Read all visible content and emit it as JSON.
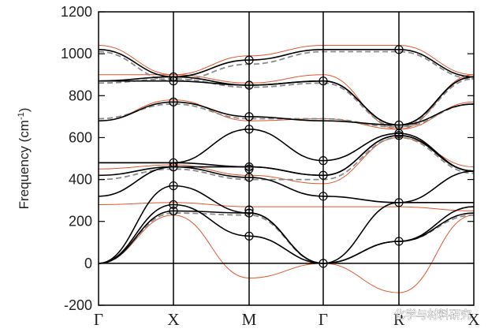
{
  "chart_data": {
    "type": "line",
    "ylabel": "Frequency (cm",
    "ylabel_sup": "-1",
    "ylabel_close": ")",
    "ylim": [
      -200,
      1200
    ],
    "yticks": [
      -200,
      0,
      200,
      400,
      600,
      800,
      1000,
      1200
    ],
    "high_symmetry_labels": [
      "Γ",
      "X",
      "M",
      "Γ",
      "R",
      "X"
    ],
    "grid": false,
    "series_colors": {
      "black": "#000000",
      "gray_dashed": "#8a8a8a",
      "red": "#e2572f"
    },
    "branches": [
      {
        "color": "black",
        "y": [
          0,
          250,
          240,
          0,
          105,
          240
        ]
      },
      {
        "color": "black",
        "y": [
          0,
          280,
          130,
          0,
          105,
          270
        ]
      },
      {
        "color": "black",
        "y": [
          0,
          370,
          240,
          0,
          290,
          290
        ]
      },
      {
        "color": "black",
        "y": [
          320,
          460,
          410,
          320,
          290,
          440
        ]
      },
      {
        "color": "black",
        "y": [
          420,
          460,
          460,
          420,
          610,
          440
        ]
      },
      {
        "color": "black",
        "y": [
          480,
          480,
          460,
          420,
          610,
          440
        ]
      },
      {
        "color": "black",
        "y": [
          480,
          480,
          640,
          490,
          620,
          440
        ]
      },
      {
        "color": "black",
        "y": [
          680,
          770,
          700,
          680,
          660,
          760
        ]
      },
      {
        "color": "black",
        "y": [
          870,
          870,
          850,
          870,
          660,
          890
        ]
      },
      {
        "color": "black",
        "y": [
          870,
          890,
          850,
          870,
          660,
          890
        ]
      },
      {
        "color": "black",
        "y": [
          1020,
          890,
          970,
          1020,
          1020,
          890
        ]
      },
      {
        "color": "gray_dashed",
        "y": [
          0,
          240,
          230,
          0,
          105,
          230
        ]
      },
      {
        "color": "gray_dashed",
        "y": [
          400,
          450,
          400,
          400,
          600,
          430
        ]
      },
      {
        "color": "gray_dashed",
        "y": [
          690,
          760,
          690,
          690,
          650,
          760
        ]
      },
      {
        "color": "gray_dashed",
        "y": [
          860,
          880,
          840,
          860,
          650,
          880
        ]
      },
      {
        "color": "gray_dashed",
        "y": [
          1010,
          870,
          950,
          1010,
          1010,
          880
        ]
      },
      {
        "color": "red",
        "y": [
          0,
          230,
          -70,
          0,
          -140,
          230
        ]
      },
      {
        "color": "red",
        "y": [
          280,
          290,
          270,
          270,
          270,
          250
        ]
      },
      {
        "color": "red",
        "y": [
          450,
          470,
          420,
          380,
          600,
          460
        ]
      },
      {
        "color": "red",
        "y": [
          680,
          780,
          680,
          690,
          640,
          770
        ]
      },
      {
        "color": "red",
        "y": [
          900,
          900,
          860,
          900,
          640,
          900
        ]
      },
      {
        "color": "red",
        "y": [
          1040,
          900,
          990,
          1040,
          1040,
          900
        ]
      }
    ],
    "markers": [
      {
        "xi": 1,
        "y": 890
      },
      {
        "xi": 1,
        "y": 870
      },
      {
        "xi": 1,
        "y": 770
      },
      {
        "xi": 1,
        "y": 480
      },
      {
        "xi": 1,
        "y": 460
      },
      {
        "xi": 1,
        "y": 370
      },
      {
        "xi": 1,
        "y": 280
      },
      {
        "xi": 1,
        "y": 250
      },
      {
        "xi": 2,
        "y": 970
      },
      {
        "xi": 2,
        "y": 850
      },
      {
        "xi": 2,
        "y": 700
      },
      {
        "xi": 2,
        "y": 640
      },
      {
        "xi": 2,
        "y": 460
      },
      {
        "xi": 2,
        "y": 450
      },
      {
        "xi": 2,
        "y": 410
      },
      {
        "xi": 2,
        "y": 255
      },
      {
        "xi": 2,
        "y": 240
      },
      {
        "xi": 2,
        "y": 130
      },
      {
        "xi": 3,
        "y": 870
      },
      {
        "xi": 3,
        "y": 490
      },
      {
        "xi": 3,
        "y": 420
      },
      {
        "xi": 3,
        "y": 320
      },
      {
        "xi": 3,
        "y": 0
      },
      {
        "xi": 4,
        "y": 1020
      },
      {
        "xi": 4,
        "y": 660
      },
      {
        "xi": 4,
        "y": 620
      },
      {
        "xi": 4,
        "y": 610
      },
      {
        "xi": 4,
        "y": 290
      },
      {
        "xi": 4,
        "y": 105
      }
    ]
  },
  "watermark": "化学与材料研究"
}
